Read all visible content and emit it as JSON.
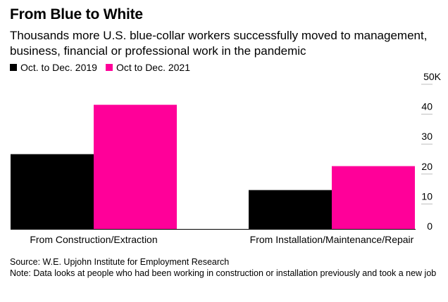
{
  "header": {
    "title": "From Blue to White",
    "subtitle": "Thousands more U.S. blue-collar workers successfully moved to management, business, financial or professional work in the pandemic"
  },
  "chart_data": {
    "type": "bar",
    "categories": [
      "From Construction/Extraction",
      "From Installation/Maintenance/Repair"
    ],
    "series": [
      {
        "name": "Oct. to Dec. 2019",
        "color": "#000000",
        "values": [
          25,
          13
        ]
      },
      {
        "name": "Oct to Dec. 2021",
        "color": "#ff0099",
        "values": [
          41.5,
          21
        ]
      }
    ],
    "ylim": [
      0,
      50
    ],
    "yticks": [
      {
        "value": 0,
        "label": "0"
      },
      {
        "value": 10,
        "label": "10"
      },
      {
        "value": 20,
        "label": "20"
      },
      {
        "value": 30,
        "label": "30"
      },
      {
        "value": 40,
        "label": "40"
      },
      {
        "value": 50,
        "label": "50K"
      }
    ],
    "legend_position": "top-left",
    "axis_position": "right",
    "grid": false
  },
  "footer": {
    "source": "Source: W.E. Upjohn Institute for Employment Research",
    "note": "Note: Data looks at people who had been working in construction or installation previously and took a new job"
  }
}
